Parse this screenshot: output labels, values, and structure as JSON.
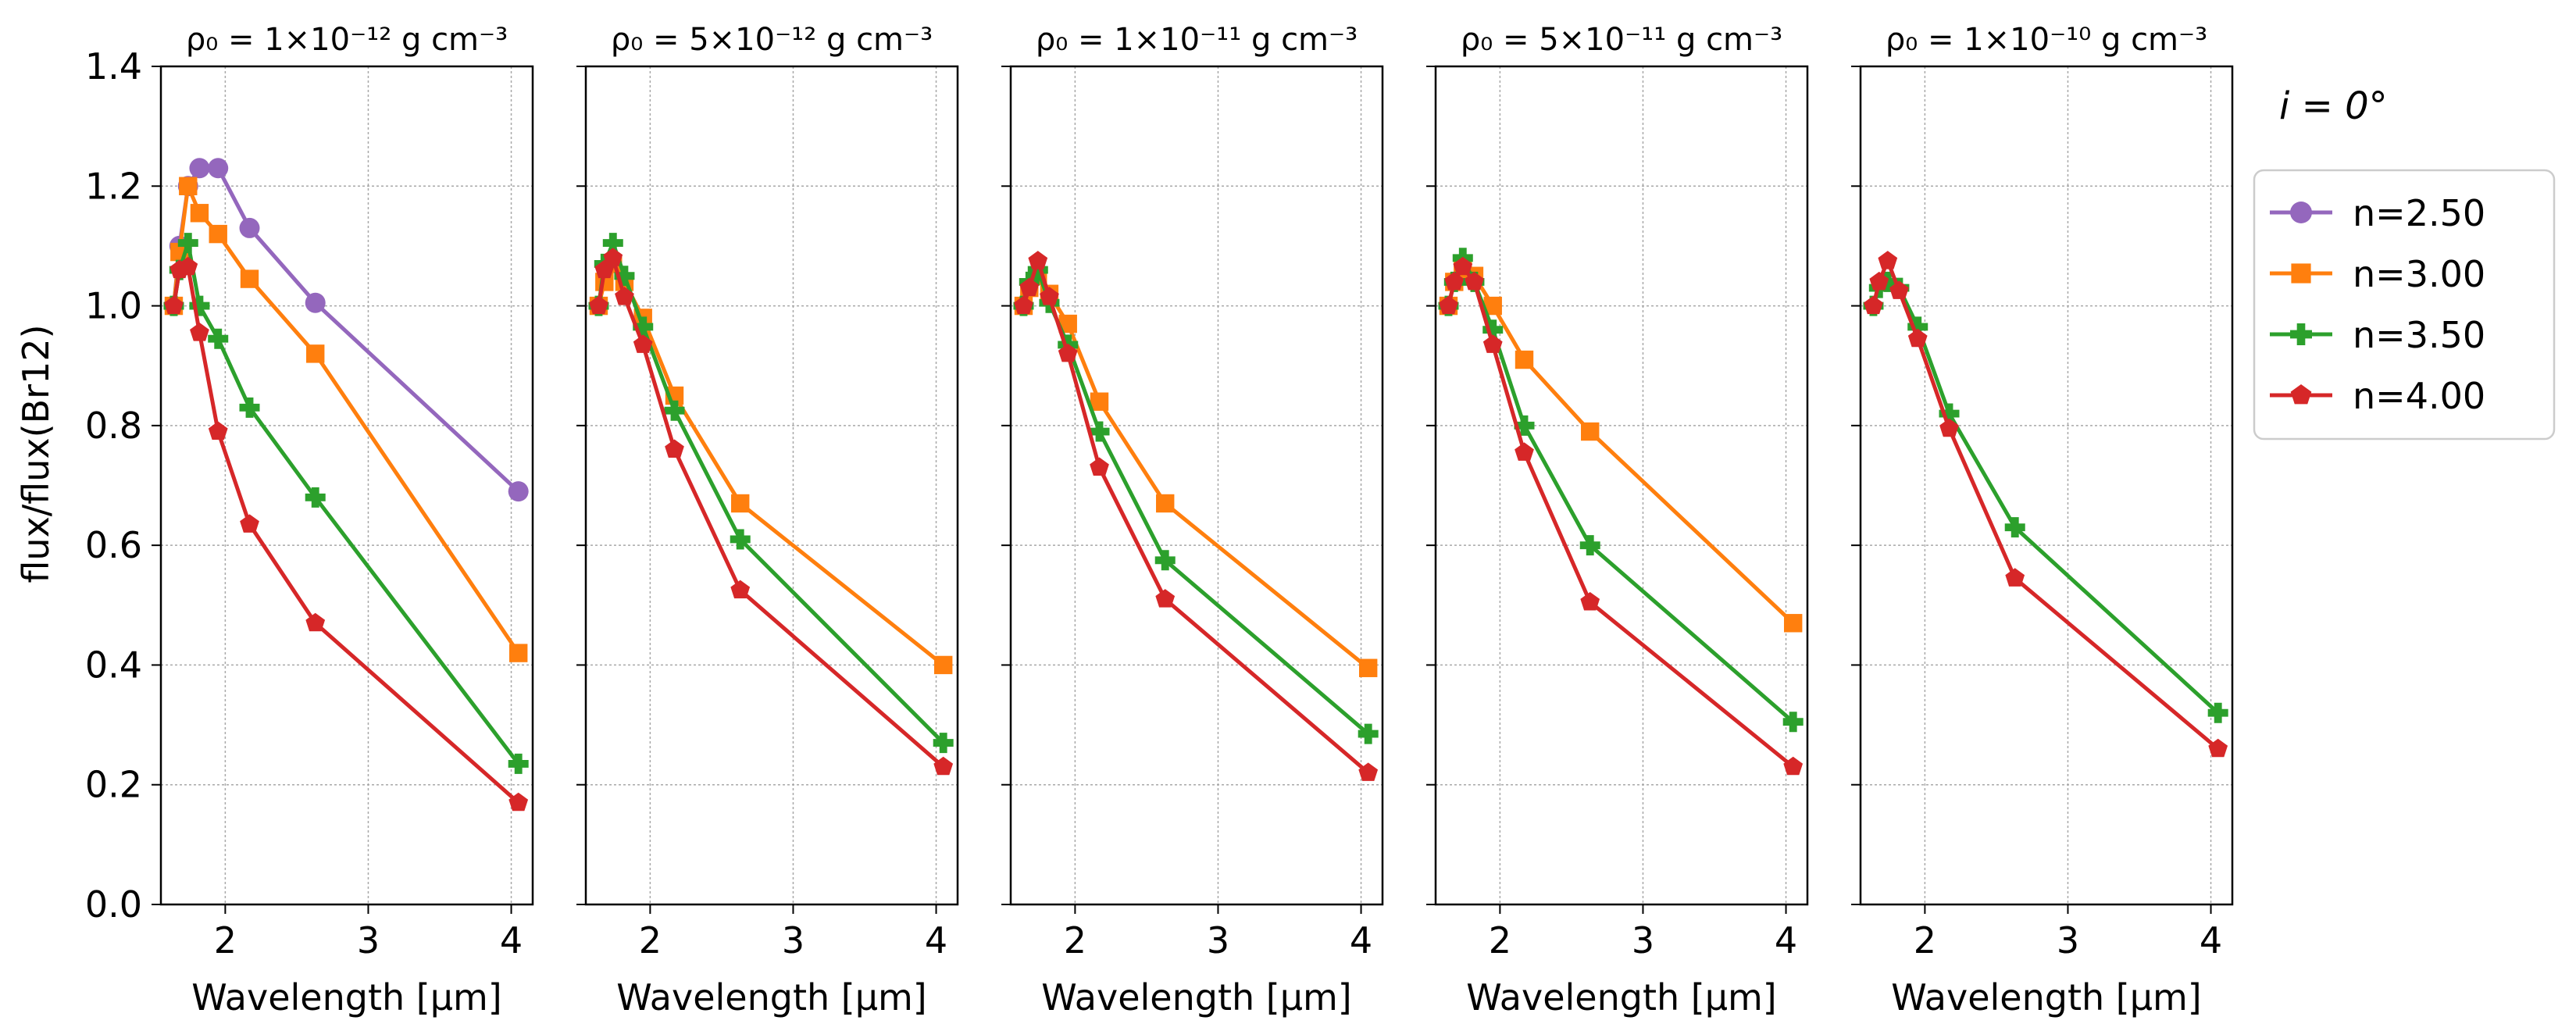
{
  "figure": {
    "ylabel": "flux/flux(Br12)",
    "xlabel": "Wavelength [μm]",
    "inclination_label": "i = 0°",
    "legend": [
      {
        "label": "n=2.50",
        "color": "#9467bd",
        "marker": "circle"
      },
      {
        "label": "n=3.00",
        "color": "#ff7f0e",
        "marker": "square"
      },
      {
        "label": "n=3.50",
        "color": "#2ca02c",
        "marker": "plus"
      },
      {
        "label": "n=4.00",
        "color": "#d62728",
        "marker": "pentagon"
      }
    ]
  },
  "chart_data": [
    {
      "type": "line",
      "title": "ρ₀ = 1×10⁻¹² g cm⁻³",
      "xlabel": "Wavelength [μm]",
      "ylabel": "flux/flux(Br12)",
      "xlim": [
        1.55,
        4.15
      ],
      "ylim": [
        0.0,
        1.4
      ],
      "xticks": [
        2,
        3,
        4
      ],
      "yticks": [
        0.0,
        0.2,
        0.4,
        0.6,
        0.8,
        1.0,
        1.2,
        1.4
      ],
      "grid": true,
      "x": [
        1.64,
        1.68,
        1.74,
        1.82,
        1.95,
        2.17,
        2.63,
        4.05
      ],
      "series": [
        {
          "name": "n=2.50",
          "values": [
            1.0,
            1.1,
            1.2,
            1.23,
            1.23,
            1.13,
            1.005,
            0.69
          ]
        },
        {
          "name": "n=3.00",
          "values": [
            1.0,
            1.09,
            1.2,
            1.155,
            1.12,
            1.045,
            0.92,
            0.42
          ]
        },
        {
          "name": "n=3.50",
          "values": [
            1.0,
            1.06,
            1.105,
            1.0,
            0.945,
            0.83,
            0.68,
            0.235
          ]
        },
        {
          "name": "n=4.00",
          "values": [
            1.0,
            1.06,
            1.065,
            0.955,
            0.79,
            0.635,
            0.47,
            0.17
          ]
        }
      ]
    },
    {
      "type": "line",
      "title": "ρ₀ = 5×10⁻¹² g cm⁻³",
      "xlabel": "Wavelength [μm]",
      "xlim": [
        1.55,
        4.15
      ],
      "ylim": [
        0.0,
        1.4
      ],
      "xticks": [
        2,
        3,
        4
      ],
      "grid": true,
      "x": [
        1.64,
        1.68,
        1.74,
        1.82,
        1.95,
        2.17,
        2.63,
        4.05
      ],
      "series": [
        {
          "name": "n=3.00",
          "values": [
            1.0,
            1.04,
            1.07,
            1.04,
            0.98,
            0.85,
            0.67,
            0.4
          ]
        },
        {
          "name": "n=3.50",
          "values": [
            1.0,
            1.07,
            1.105,
            1.05,
            0.965,
            0.825,
            0.61,
            0.27
          ]
        },
        {
          "name": "n=4.00",
          "values": [
            1.0,
            1.06,
            1.08,
            1.015,
            0.935,
            0.76,
            0.525,
            0.23
          ]
        }
      ]
    },
    {
      "type": "line",
      "title": "ρ₀ = 1×10⁻¹¹ g cm⁻³",
      "xlabel": "Wavelength [μm]",
      "xlim": [
        1.55,
        4.15
      ],
      "ylim": [
        0.0,
        1.4
      ],
      "xticks": [
        2,
        3,
        4
      ],
      "grid": true,
      "x": [
        1.64,
        1.68,
        1.74,
        1.82,
        1.95,
        2.17,
        2.63,
        4.05
      ],
      "series": [
        {
          "name": "n=3.00",
          "values": [
            1.0,
            1.03,
            1.05,
            1.02,
            0.97,
            0.84,
            0.67,
            0.395
          ]
        },
        {
          "name": "n=3.50",
          "values": [
            1.0,
            1.04,
            1.06,
            1.005,
            0.935,
            0.79,
            0.575,
            0.285
          ]
        },
        {
          "name": "n=4.00",
          "values": [
            1.0,
            1.03,
            1.075,
            1.015,
            0.92,
            0.73,
            0.51,
            0.22
          ]
        }
      ]
    },
    {
      "type": "line",
      "title": "ρ₀ = 5×10⁻¹¹ g cm⁻³",
      "xlabel": "Wavelength [μm]",
      "xlim": [
        1.55,
        4.15
      ],
      "ylim": [
        0.0,
        1.4
      ],
      "xticks": [
        2,
        3,
        4
      ],
      "grid": true,
      "x": [
        1.64,
        1.68,
        1.74,
        1.82,
        1.95,
        2.17,
        2.63,
        4.05
      ],
      "series": [
        {
          "name": "n=3.00",
          "values": [
            1.0,
            1.04,
            1.06,
            1.05,
            1.0,
            0.91,
            0.79,
            0.47
          ]
        },
        {
          "name": "n=3.50",
          "values": [
            1.0,
            1.04,
            1.08,
            1.04,
            0.96,
            0.8,
            0.6,
            0.305
          ]
        },
        {
          "name": "n=4.00",
          "values": [
            1.0,
            1.04,
            1.065,
            1.04,
            0.935,
            0.755,
            0.505,
            0.23
          ]
        }
      ]
    },
    {
      "type": "line",
      "title": "ρ₀ = 1×10⁻¹⁰ g cm⁻³",
      "xlabel": "Wavelength [μm]",
      "xlim": [
        1.55,
        4.15
      ],
      "ylim": [
        0.0,
        1.4
      ],
      "xticks": [
        2,
        3,
        4
      ],
      "grid": true,
      "x": [
        1.64,
        1.68,
        1.74,
        1.82,
        1.95,
        2.17,
        2.63,
        4.05
      ],
      "series": [
        {
          "name": "n=3.50",
          "values": [
            1.0,
            1.03,
            1.04,
            1.03,
            0.965,
            0.82,
            0.63,
            0.32
          ]
        },
        {
          "name": "n=4.00",
          "values": [
            1.0,
            1.04,
            1.075,
            1.025,
            0.945,
            0.795,
            0.545,
            0.26
          ]
        }
      ]
    }
  ]
}
